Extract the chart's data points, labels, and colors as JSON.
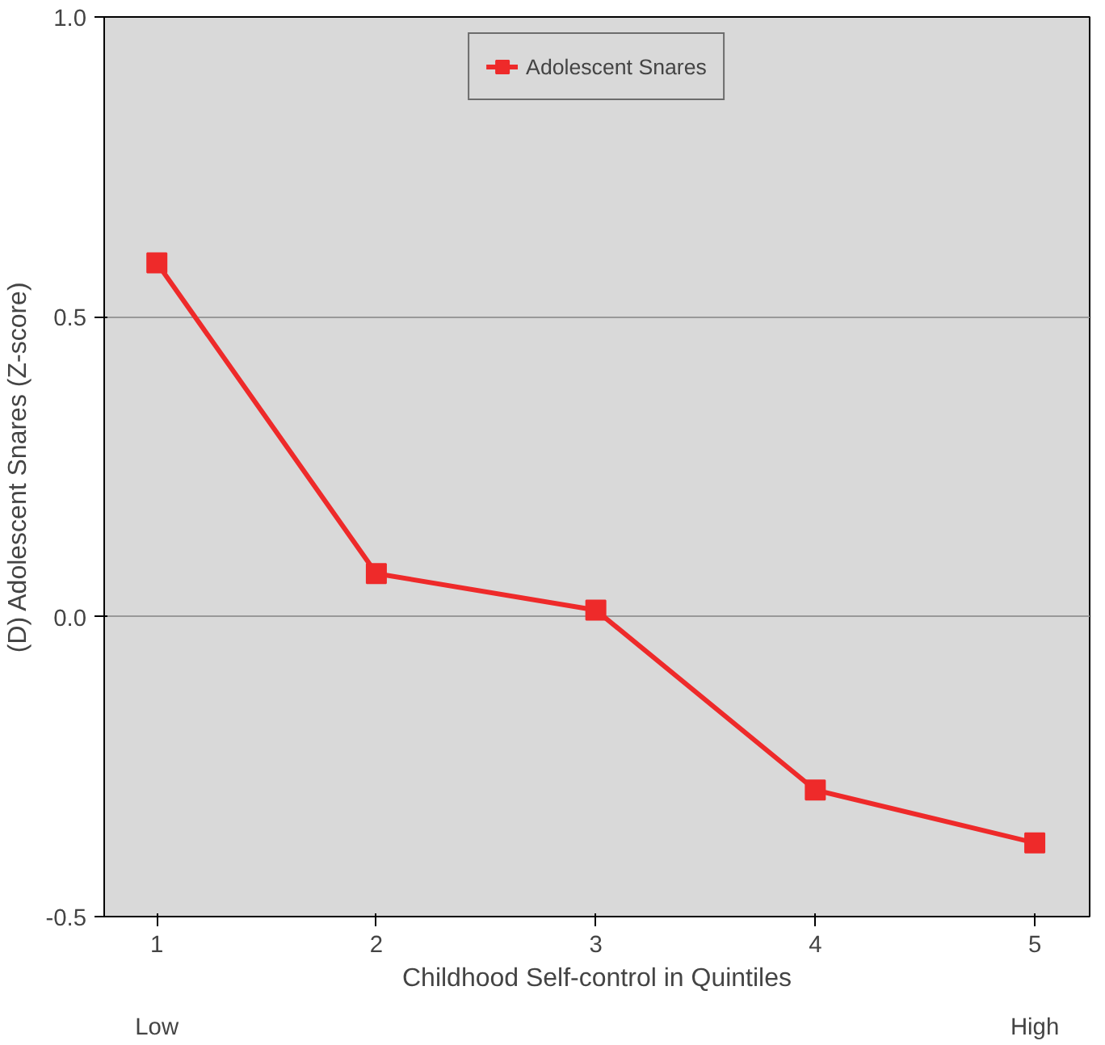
{
  "chart_data": {
    "type": "line",
    "xlabel": "Childhood Self-control in Quintiles",
    "ylabel": "(D) Adolescent Snares (Z-score)",
    "x": [
      1,
      2,
      3,
      4,
      5
    ],
    "xlim": [
      0.76,
      5.25
    ],
    "xticks": [
      1,
      2,
      3,
      4,
      5
    ],
    "annotations": [
      "Low",
      "High"
    ],
    "ylim": [
      -0.5,
      1.0
    ],
    "yticks": [
      {
        "value": -0.5,
        "label": "-0.5"
      },
      {
        "value": 0,
        "label": "0.0"
      },
      {
        "value": 0.5,
        "label": "0.5"
      },
      {
        "value": 1,
        "label": "1.0"
      }
    ],
    "series": [
      {
        "name": "Adolescent Snares",
        "color": "#ee2a2a",
        "values": [
          0.59,
          0.072,
          0.011,
          -0.289,
          -0.377
        ]
      }
    ],
    "grid": "y",
    "legend": "top",
    "marker": "square",
    "line_style": "solid"
  }
}
